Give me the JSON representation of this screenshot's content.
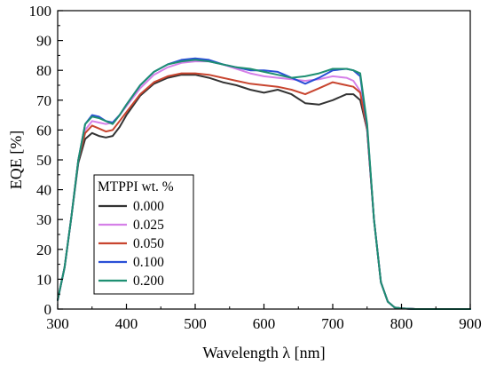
{
  "chart_data": {
    "type": "line",
    "xlabel": "Wavelength λ [nm]",
    "ylabel": "EQE [%]",
    "xlim": [
      300,
      900
    ],
    "ylim": [
      0,
      100
    ],
    "xticks": [
      300,
      400,
      500,
      600,
      700,
      800,
      900
    ],
    "yticks": [
      0,
      10,
      20,
      30,
      40,
      50,
      60,
      70,
      80,
      90,
      100
    ],
    "grid": false,
    "legend": {
      "title": "MTPPI wt. %",
      "position": "left-center"
    },
    "x": [
      300,
      310,
      320,
      330,
      340,
      350,
      360,
      370,
      380,
      390,
      400,
      420,
      440,
      460,
      480,
      500,
      520,
      540,
      560,
      580,
      600,
      620,
      640,
      660,
      680,
      700,
      720,
      730,
      740,
      750,
      760,
      770,
      780,
      790,
      800,
      820,
      850,
      900
    ],
    "series": [
      {
        "name": "0.000",
        "color": "#333333",
        "values": [
          3,
          14,
          31,
          49,
          57,
          59,
          58,
          57.5,
          58,
          61,
          65,
          71.5,
          75.5,
          77.5,
          78.5,
          78.5,
          77.5,
          76,
          75,
          73.5,
          72.5,
          73.5,
          72,
          69,
          68.5,
          70,
          72,
          72,
          70,
          60,
          30,
          9,
          2.5,
          0.5,
          0.2,
          0,
          0,
          0
        ]
      },
      {
        "name": "0.025",
        "color": "#d580e8",
        "values": [
          3,
          14,
          31,
          50,
          60,
          63,
          62.5,
          62,
          62.5,
          65,
          68,
          74,
          78.5,
          81,
          82.5,
          83,
          83,
          82,
          80.5,
          79,
          78,
          77.5,
          77,
          76.5,
          77,
          78,
          77.5,
          76.5,
          73,
          60,
          30,
          9,
          2.5,
          0.5,
          0.2,
          0,
          0,
          0
        ]
      },
      {
        "name": "0.050",
        "color": "#c8452f",
        "values": [
          3,
          14,
          31,
          50,
          59,
          61.5,
          60.5,
          59.5,
          60,
          63,
          66,
          72,
          76,
          78,
          79,
          79,
          78.5,
          77.5,
          76.5,
          75.5,
          75,
          74.5,
          73.5,
          72,
          74,
          76,
          75,
          74.5,
          72.5,
          60,
          30,
          9,
          2.5,
          0.5,
          0.2,
          0,
          0,
          0
        ]
      },
      {
        "name": "0.100",
        "color": "#2a4fd6",
        "values": [
          3,
          14,
          31,
          50,
          62,
          65,
          64.5,
          63,
          62.5,
          65,
          68.5,
          75,
          79.5,
          82,
          83.5,
          84,
          83.5,
          82,
          81,
          80,
          80,
          79.5,
          77.5,
          75.5,
          77.5,
          80,
          80.5,
          80,
          78,
          61,
          30,
          9,
          2.5,
          0.5,
          0.2,
          0,
          0,
          0
        ]
      },
      {
        "name": "0.200",
        "color": "#1e8f72",
        "values": [
          3,
          14,
          31,
          50,
          62,
          64.5,
          64,
          63,
          62,
          65,
          68.5,
          75,
          79.5,
          82,
          83,
          83.5,
          83,
          82,
          81,
          80.5,
          79.5,
          78.5,
          77.5,
          78,
          79,
          80.5,
          80.5,
          80,
          79,
          62,
          30,
          9,
          2.5,
          0.5,
          0.2,
          0,
          0,
          0
        ]
      }
    ]
  }
}
